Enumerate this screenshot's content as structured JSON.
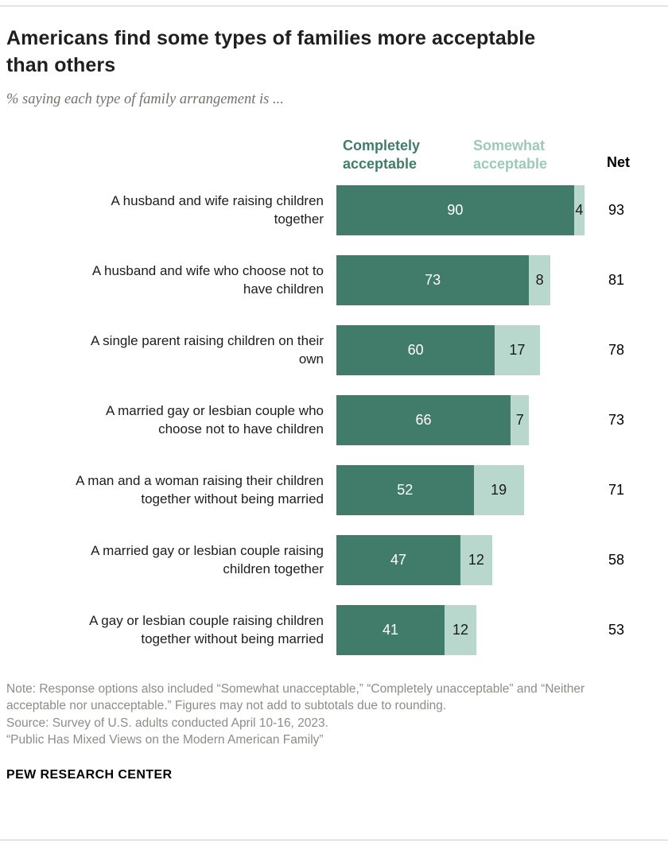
{
  "title": "Americans find some types of families more acceptable than others",
  "subtitle": "% saying each type of family arrangement is ...",
  "legend": {
    "completely_label": "Completely acceptable",
    "somewhat_label": "Somewhat acceptable",
    "net_label": "Net"
  },
  "colors": {
    "bar_dark": "#417c6b",
    "bar_light": "#b9d8cd",
    "legend_light_text": "#9cc9b8",
    "title_text": "#1f1f1f",
    "subtitle_text": "#75706b",
    "note_text": "#8e8c88"
  },
  "chart_data": {
    "type": "bar",
    "orientation": "horizontal",
    "title": "Americans find some types of families more acceptable than others",
    "subtitle": "% saying each type of family arrangement is ...",
    "categories": [
      "A husband and wife raising children together",
      "A husband and wife who choose not to have children",
      "A single parent raising children on their own",
      "A married gay or lesbian couple who choose not to have children",
      "A man and a woman raising their children together without being married",
      "A married gay or lesbian couple raising children together",
      "A gay or lesbian couple raising children together without being married"
    ],
    "series": [
      {
        "name": "Completely acceptable",
        "values": [
          90,
          73,
          60,
          66,
          52,
          47,
          41
        ]
      },
      {
        "name": "Somewhat acceptable",
        "values": [
          4,
          8,
          17,
          7,
          19,
          12,
          12
        ]
      }
    ],
    "net": [
      93,
      81,
      78,
      73,
      71,
      58,
      53
    ],
    "xlim": [
      0,
      100
    ],
    "grid": false,
    "legend_position": "top"
  },
  "notes": {
    "note": "Note: Response options also included “Somewhat unacceptable,” “Completely unacceptable” and “Neither acceptable nor unacceptable.” Figures may not add to subtotals due to rounding.",
    "source": "Source: Survey of U.S. adults conducted April 10-16, 2023.",
    "report": "“Public Has Mixed Views on the Modern American Family”"
  },
  "footer": "PEW RESEARCH CENTER"
}
